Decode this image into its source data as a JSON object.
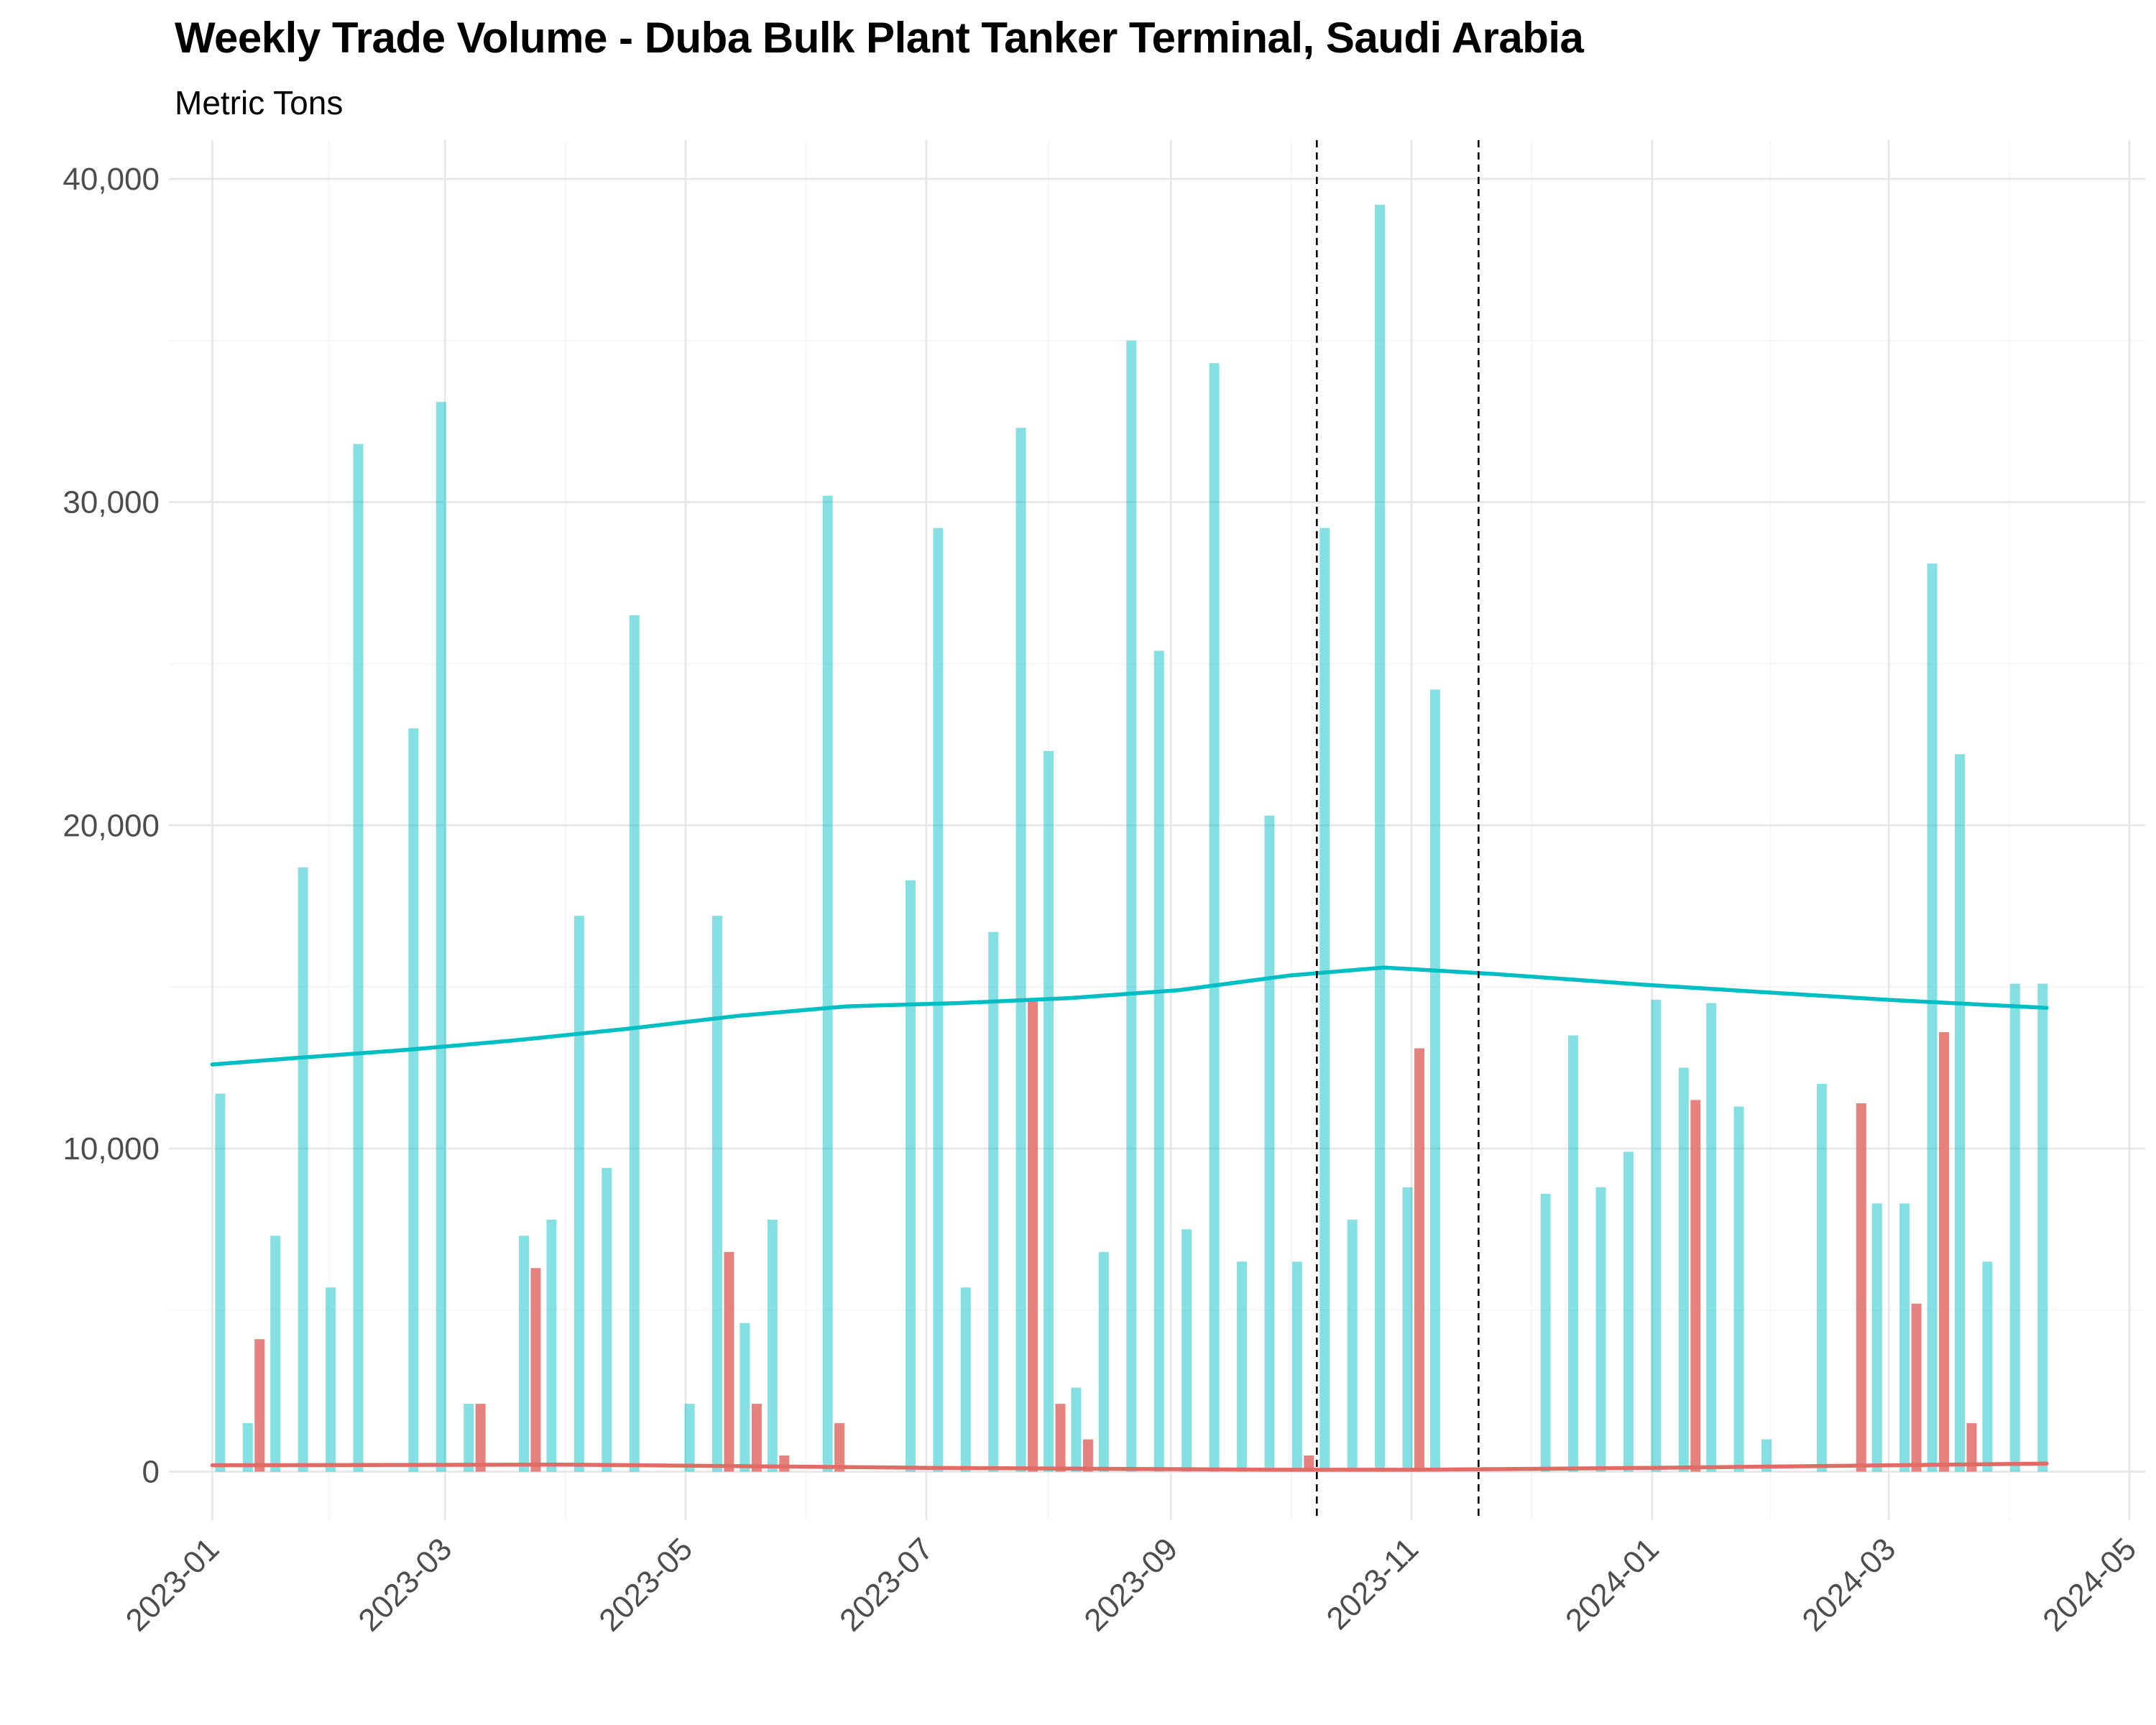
{
  "chart_data": {
    "type": "bar",
    "title": "Weekly Trade Volume - Duba Bulk Plant Tanker Terminal, Saudi Arabia",
    "subtitle": "Metric Tons",
    "xlabel": "",
    "ylabel": "",
    "ylim": [
      -1500,
      41200
    ],
    "xlim": [
      "2022-12-21",
      "2024-05-05"
    ],
    "grid": true,
    "legend": "none",
    "y_ticks": [
      {
        "value": 0,
        "label": "0"
      },
      {
        "value": 10000,
        "label": "10,000"
      },
      {
        "value": 20000,
        "label": "20,000"
      },
      {
        "value": 30000,
        "label": "30,000"
      },
      {
        "value": 40000,
        "label": "40,000"
      }
    ],
    "x_ticks": [
      "2023-01",
      "2023-03",
      "2023-05",
      "2023-07",
      "2023-09",
      "2023-11",
      "2024-01",
      "2024-03",
      "2024-05"
    ],
    "vlines": [
      "2023-10-08",
      "2023-11-18"
    ],
    "series": [
      {
        "color": "#00bfc4",
        "points": [
          [
            "2023-01-03",
            11700
          ],
          [
            "2023-01-10",
            1500
          ],
          [
            "2023-01-17",
            7300
          ],
          [
            "2023-01-24",
            18700
          ],
          [
            "2023-01-31",
            5700
          ],
          [
            "2023-02-07",
            31800
          ],
          [
            "2023-02-21",
            23000
          ],
          [
            "2023-02-28",
            33100
          ],
          [
            "2023-03-07",
            2100
          ],
          [
            "2023-03-21",
            7300
          ],
          [
            "2023-03-28",
            7800
          ],
          [
            "2023-04-04",
            17200
          ],
          [
            "2023-04-11",
            9400
          ],
          [
            "2023-04-18",
            26500
          ],
          [
            "2023-05-02",
            2100
          ],
          [
            "2023-05-09",
            17200
          ],
          [
            "2023-05-16",
            4600
          ],
          [
            "2023-05-23",
            7800
          ],
          [
            "2023-06-06",
            30200
          ],
          [
            "2023-06-27",
            18300
          ],
          [
            "2023-07-04",
            29200
          ],
          [
            "2023-07-11",
            5700
          ],
          [
            "2023-07-18",
            16700
          ],
          [
            "2023-07-25",
            32300
          ],
          [
            "2023-08-01",
            22300
          ],
          [
            "2023-08-08",
            2600
          ],
          [
            "2023-08-15",
            6800
          ],
          [
            "2023-08-22",
            35000
          ],
          [
            "2023-08-29",
            25400
          ],
          [
            "2023-09-05",
            7500
          ],
          [
            "2023-09-12",
            34300
          ],
          [
            "2023-09-19",
            6500
          ],
          [
            "2023-09-26",
            20300
          ],
          [
            "2023-10-03",
            6500
          ],
          [
            "2023-10-10",
            29200
          ],
          [
            "2023-10-17",
            7800
          ],
          [
            "2023-10-24",
            39200
          ],
          [
            "2023-10-31",
            8800
          ],
          [
            "2023-11-07",
            24200
          ],
          [
            "2023-12-05",
            8600
          ],
          [
            "2023-12-12",
            13500
          ],
          [
            "2023-12-19",
            8800
          ],
          [
            "2023-12-26",
            9900
          ],
          [
            "2024-01-02",
            14600
          ],
          [
            "2024-01-09",
            12500
          ],
          [
            "2024-01-16",
            14500
          ],
          [
            "2024-01-23",
            11300
          ],
          [
            "2024-01-30",
            1000
          ],
          [
            "2024-02-13",
            12000
          ],
          [
            "2024-02-27",
            8300
          ],
          [
            "2024-03-05",
            8300
          ],
          [
            "2024-03-12",
            28100
          ],
          [
            "2024-03-19",
            22200
          ],
          [
            "2024-03-26",
            6500
          ],
          [
            "2024-04-02",
            15100
          ],
          [
            "2024-04-09",
            15100
          ]
        ],
        "trend": [
          [
            "2023-01-01",
            12600
          ],
          [
            "2023-01-22",
            12800
          ],
          [
            "2023-02-19",
            13050
          ],
          [
            "2023-03-19",
            13350
          ],
          [
            "2023-04-16",
            13700
          ],
          [
            "2023-05-14",
            14100
          ],
          [
            "2023-06-11",
            14400
          ],
          [
            "2023-07-09",
            14500
          ],
          [
            "2023-08-06",
            14650
          ],
          [
            "2023-09-03",
            14900
          ],
          [
            "2023-10-01",
            15350
          ],
          [
            "2023-10-25",
            15600
          ],
          [
            "2023-11-22",
            15400
          ],
          [
            "2024-01-01",
            15050
          ],
          [
            "2024-03-01",
            14600
          ],
          [
            "2024-04-10",
            14350
          ]
        ]
      },
      {
        "color": "#e06c66",
        "points": [
          [
            "2023-01-13",
            4100
          ],
          [
            "2023-03-10",
            2100
          ],
          [
            "2023-03-24",
            6300
          ],
          [
            "2023-05-12",
            6800
          ],
          [
            "2023-05-19",
            2100
          ],
          [
            "2023-05-26",
            500
          ],
          [
            "2023-06-09",
            1500
          ],
          [
            "2023-07-28",
            14600
          ],
          [
            "2023-08-04",
            2100
          ],
          [
            "2023-08-11",
            1000
          ],
          [
            "2023-10-06",
            500
          ],
          [
            "2023-11-03",
            13100
          ],
          [
            "2024-01-12",
            11500
          ],
          [
            "2024-02-23",
            11400
          ],
          [
            "2024-03-08",
            5200
          ],
          [
            "2024-03-15",
            13600
          ],
          [
            "2024-03-22",
            1500
          ]
        ],
        "trend": [
          [
            "2023-01-01",
            200
          ],
          [
            "2023-04-01",
            220
          ],
          [
            "2023-07-01",
            120
          ],
          [
            "2023-10-01",
            60
          ],
          [
            "2023-11-01",
            60
          ],
          [
            "2024-01-01",
            120
          ],
          [
            "2024-04-10",
            250
          ]
        ]
      }
    ]
  }
}
